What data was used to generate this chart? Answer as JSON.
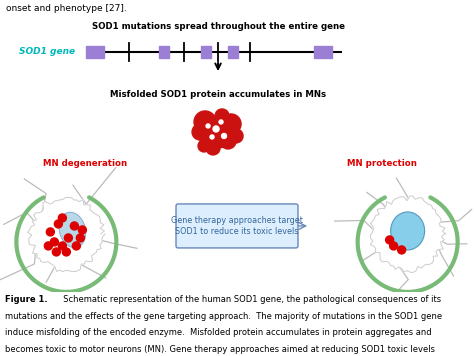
{
  "bg_color": "#ffffff",
  "title_top": "onset and phenotype [27].",
  "gene_label": "SOD1 gene",
  "gene_label_color": "#00b8b8",
  "gene_line_color": "#000000",
  "gene_box_color": "#9b7fd4",
  "sod1_mutations_label": "SOD1 mutations spread throughout the entire gene",
  "misfolded_label": "Misfolded SOD1 protein accumulates in MNs",
  "mn_degen_label": "MN degeneration",
  "mn_degen_color": "#dd0000",
  "mn_protect_label": "MN protection",
  "mn_protect_color": "#dd0000",
  "gene_therapy_label": "Gene therapy approaches target\nSOD1 to reduce its toxic levels",
  "gene_therapy_box_color": "#ddeeff",
  "gene_therapy_border_color": "#6688bb",
  "gene_therapy_text_color": "#336699",
  "arrow_color": "#222222",
  "figure_caption_bold": "Figure 1.",
  "figure_caption_rest": "  Schematic representation of the human ",
  "figure_caption_line2": "mutations and the effects of the gene targeting approach.  The majority of mutations in the ",
  "figure_caption_line3": "induce misfolding of the encoded enzyme.  Misfolded protein accumulates in protein aggregates and",
  "figure_caption_line4": "becomes toxic to motor neurons (MN). Gene therapy approaches aimed at reducing SOD1 toxic levels"
}
